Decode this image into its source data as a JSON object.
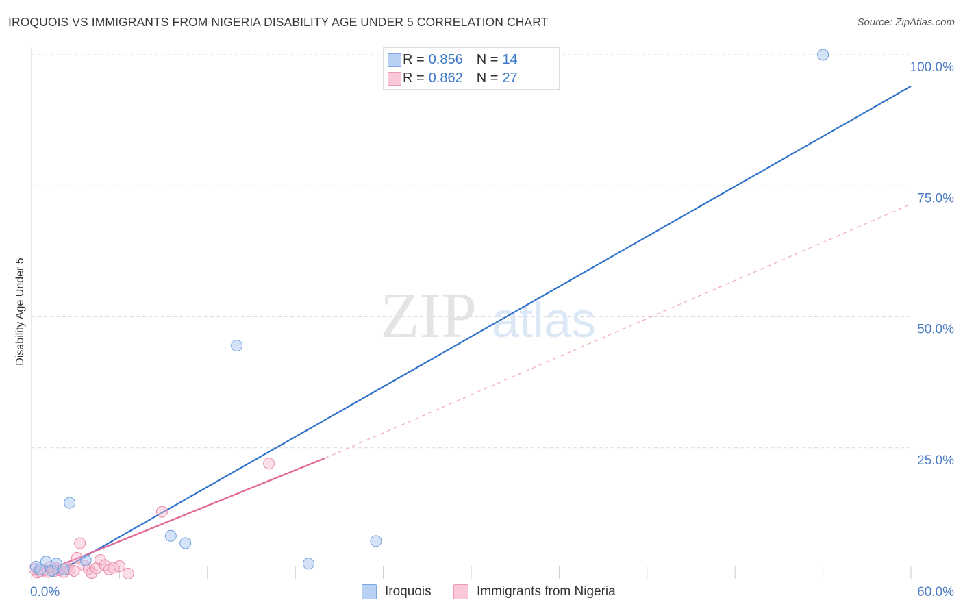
{
  "header": {
    "title": "IROQUOIS VS IMMIGRANTS FROM NIGERIA DISABILITY AGE UNDER 5 CORRELATION CHART",
    "source": "Source: ZipAtlas.com"
  },
  "watermark": {
    "zip": "ZIP",
    "atlas": "atlas"
  },
  "colors": {
    "iroquois_fill": "#a9c8f2",
    "iroquois_stroke": "#6f9fdc",
    "iroquois_line": "#2f72c9",
    "nigeria_fill": "#f7b9cc",
    "nigeria_stroke": "#e889a8",
    "nigeria_line": "#e3699a",
    "tick_label": "#4a7cc4",
    "grid": "#dcdcdc"
  },
  "legend_top": [
    {
      "r_label": "R =",
      "r_value": "0.856",
      "n_label": "N =",
      "n_value": "14"
    },
    {
      "r_label": "R =",
      "r_value": "0.862",
      "n_label": "N =",
      "n_value": "27"
    }
  ],
  "legend_bottom": [
    "Iroquois",
    "Immigrants from Nigeria"
  ],
  "chart_data": {
    "type": "scatter",
    "title": "IROQUOIS VS IMMIGRANTS FROM NIGERIA DISABILITY AGE UNDER 5 CORRELATION CHART",
    "xlabel": "",
    "ylabel": "Disability Age Under 5",
    "xlim": [
      0,
      60
    ],
    "ylim": [
      0,
      100
    ],
    "x_tick_labels": [
      "0.0%",
      "60.0%"
    ],
    "y_ticks": [
      25,
      50,
      75,
      100
    ],
    "y_tick_labels": [
      "25.0%",
      "50.0%",
      "75.0%",
      "100.0%"
    ],
    "grid": true,
    "series": [
      {
        "name": "Iroquois",
        "points": [
          [
            0.3,
            2.3
          ],
          [
            0.6,
            1.8
          ],
          [
            1.0,
            3.3
          ],
          [
            1.4,
            1.5
          ],
          [
            1.7,
            2.9
          ],
          [
            2.2,
            1.8
          ],
          [
            2.6,
            14.5
          ],
          [
            3.7,
            3.5
          ],
          [
            9.5,
            8.2
          ],
          [
            10.5,
            6.8
          ],
          [
            14.0,
            44.5
          ],
          [
            18.9,
            2.9
          ],
          [
            23.5,
            7.2
          ],
          [
            54.0,
            100.0
          ]
        ],
        "trend": {
          "x": [
            1.3,
            60.0
          ],
          "y": [
            0.5,
            94.0
          ],
          "style": "solid"
        }
      },
      {
        "name": "Immigrants from Nigeria",
        "points": [
          [
            0.2,
            1.9
          ],
          [
            0.4,
            1.2
          ],
          [
            0.6,
            1.4
          ],
          [
            0.9,
            1.6
          ],
          [
            1.1,
            1.3
          ],
          [
            1.3,
            2.3
          ],
          [
            1.5,
            1.4
          ],
          [
            1.7,
            2.0
          ],
          [
            1.9,
            1.6
          ],
          [
            2.2,
            1.3
          ],
          [
            2.4,
            2.1
          ],
          [
            2.6,
            1.8
          ],
          [
            2.9,
            1.5
          ],
          [
            3.1,
            4.0
          ],
          [
            3.3,
            6.8
          ],
          [
            3.6,
            2.5
          ],
          [
            3.9,
            1.9
          ],
          [
            4.1,
            1.1
          ],
          [
            4.4,
            2.0
          ],
          [
            4.7,
            3.6
          ],
          [
            5.0,
            2.6
          ],
          [
            5.3,
            1.8
          ],
          [
            5.6,
            2.1
          ],
          [
            6.0,
            2.4
          ],
          [
            6.6,
            1.0
          ],
          [
            8.9,
            12.8
          ],
          [
            16.2,
            22.0
          ]
        ],
        "trend": {
          "x": [
            1.0,
            20.0
          ],
          "y": [
            1.5,
            23.0
          ],
          "style": "solid"
        },
        "trend_extension": {
          "x": [
            20.0,
            60.0
          ],
          "y": [
            23.0,
            71.5
          ],
          "style": "dashed"
        }
      }
    ]
  }
}
